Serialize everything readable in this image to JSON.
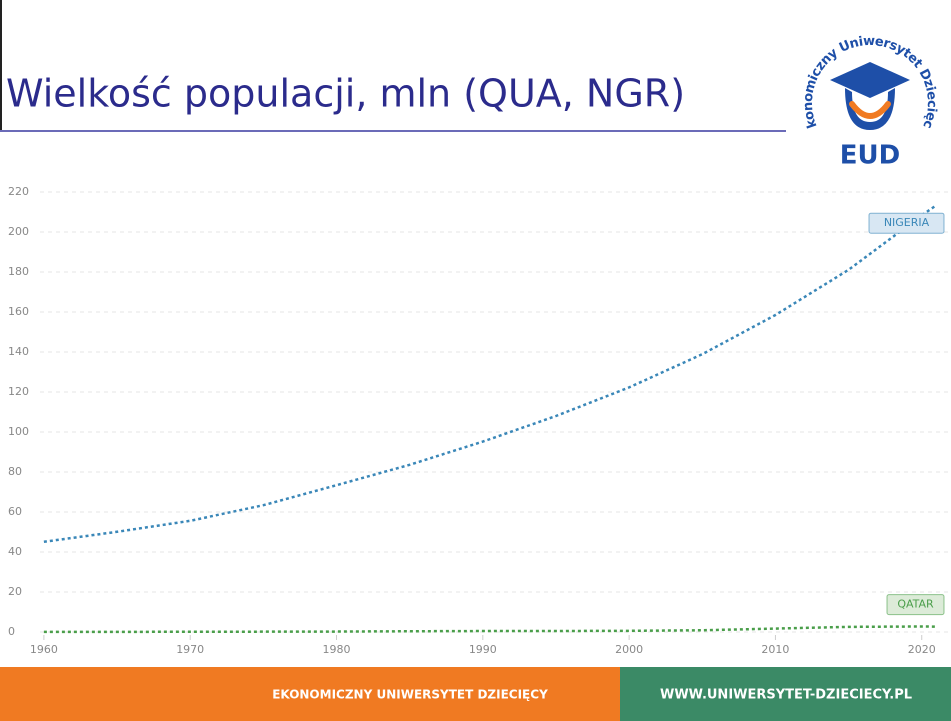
{
  "chart_data": {
    "type": "line",
    "title": "Wielkość populacji, mln (QUA, NGR)",
    "x": [
      1960,
      1965,
      1970,
      1975,
      1980,
      1985,
      1990,
      1995,
      2000,
      2005,
      2010,
      2015,
      2020,
      2021
    ],
    "series": [
      {
        "name": "NIGERIA",
        "color": "#3a87b8",
        "values": [
          45.1,
          50.1,
          55.6,
          63.4,
          73.4,
          83.6,
          95.2,
          108,
          122.3,
          138.9,
          158.5,
          181.1,
          208.3,
          213.4
        ]
      },
      {
        "name": "QATAR",
        "color": "#4a9e4a",
        "values": [
          0.05,
          0.08,
          0.11,
          0.16,
          0.22,
          0.37,
          0.48,
          0.5,
          0.59,
          0.87,
          1.71,
          2.57,
          2.76,
          2.69
        ]
      }
    ],
    "xlim": [
      1957,
      2022
    ],
    "xticks": [
      1960,
      1970,
      1980,
      1990,
      2000,
      2010,
      2020
    ],
    "ylim": [
      0,
      220
    ],
    "yticks": [
      0,
      20,
      40,
      60,
      80,
      100,
      120,
      140,
      160,
      180,
      200,
      220
    ],
    "grid": true
  },
  "logo": {
    "arc_text": "Ekonomiczny Uniwersytet Dziecięcy",
    "letters": "EUD"
  },
  "footer": {
    "left": "EKONOMICZNY UNIWERSYTET DZIECIĘCY",
    "right": "WWW.UNIWERSYTET-DZIECIECY.PL"
  }
}
